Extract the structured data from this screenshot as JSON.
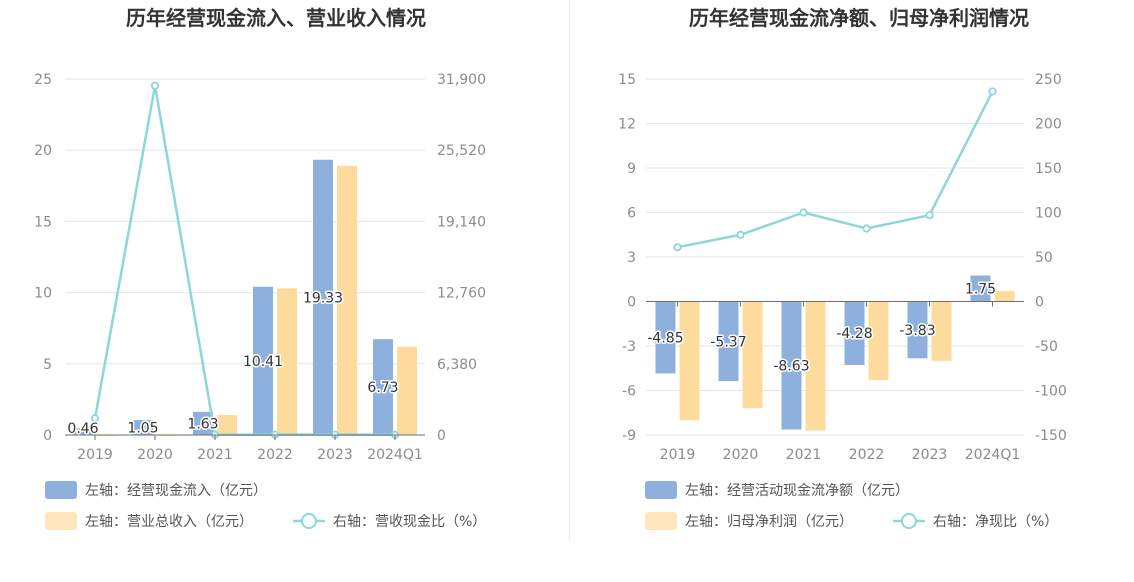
{
  "chart_data": [
    {
      "type": "bar",
      "title": "历年经营现金流入、营业收入情况",
      "categories": [
        "2019",
        "2020",
        "2021",
        "2022",
        "2023",
        "2024Q1"
      ],
      "left_axis": {
        "ylim": [
          0,
          25
        ],
        "ticks": [
          "0",
          "5",
          "10",
          "15",
          "20",
          "25"
        ]
      },
      "right_axis": {
        "ylim": [
          0,
          31900
        ],
        "ticks": [
          "0",
          "6,380",
          "12,760",
          "19,140",
          "25,520",
          "31,900"
        ]
      },
      "series": [
        {
          "name": "左轴：经营现金流入（亿元）",
          "kind": "bar",
          "axis": "left",
          "color": "#8eb0dc",
          "values": [
            0.46,
            1.05,
            1.63,
            10.41,
            19.33,
            6.73
          ],
          "labels": [
            "0.46",
            "1.05",
            "1.63",
            "10.41",
            "19.33",
            "6.73"
          ]
        },
        {
          "name": "左轴：营业总收入（亿元）",
          "kind": "bar",
          "axis": "left",
          "color": "#fddb9c",
          "values": [
            0.01,
            0.01,
            1.4,
            10.3,
            18.9,
            6.2
          ]
        },
        {
          "name": "右轴：营收现金比（%）",
          "kind": "line",
          "axis": "right",
          "color": "#8dd6db",
          "values": [
            1500,
            31300,
            20,
            30,
            30,
            20
          ]
        }
      ],
      "grid": true,
      "legend_position": "bottom"
    },
    {
      "type": "bar",
      "title": "历年经营现金流净额、归母净利润情况",
      "categories": [
        "2019",
        "2020",
        "2021",
        "2022",
        "2023",
        "2024Q1"
      ],
      "left_axis": {
        "ylim": [
          -9,
          15
        ],
        "ticks": [
          "-9",
          "-6",
          "-3",
          "0",
          "3",
          "6",
          "9",
          "12",
          "15"
        ]
      },
      "right_axis": {
        "ylim": [
          -150,
          250
        ],
        "ticks": [
          "-150",
          "-100",
          "-50",
          "0",
          "50",
          "100",
          "150",
          "200",
          "250"
        ]
      },
      "series": [
        {
          "name": "左轴：经营活动现金流净额（亿元）",
          "kind": "bar",
          "axis": "left",
          "color": "#8eb0dc",
          "values": [
            -4.85,
            -5.37,
            -8.63,
            -4.28,
            -3.83,
            1.75
          ],
          "labels": [
            "-4.85",
            "-5.37",
            "-8.63",
            "-4.28",
            "-3.83",
            "1.75"
          ]
        },
        {
          "name": "左轴：归母净利润（亿元）",
          "kind": "bar",
          "axis": "left",
          "color": "#fddb9c",
          "values": [
            -8.0,
            -7.2,
            -8.7,
            -5.3,
            -4.0,
            0.7
          ]
        },
        {
          "name": "右轴：净现比（%）",
          "kind": "line",
          "axis": "right",
          "color": "#8dd6db",
          "values": [
            61,
            75,
            100,
            82,
            97,
            236
          ]
        }
      ],
      "grid": true,
      "legend_position": "bottom"
    }
  ]
}
